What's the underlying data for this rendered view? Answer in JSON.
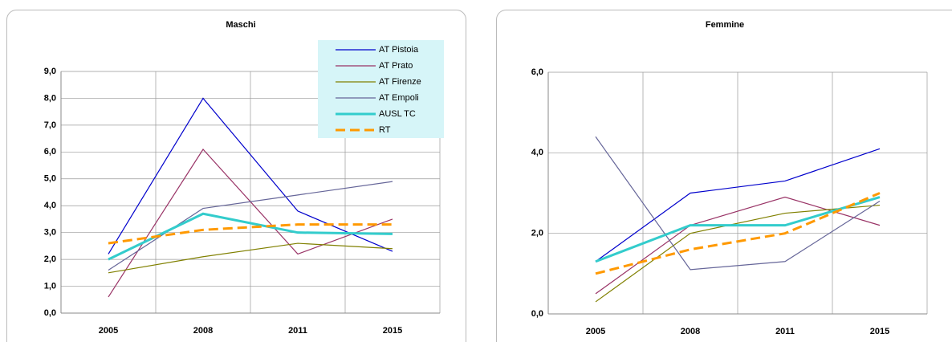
{
  "chart_data": [
    {
      "type": "line",
      "title": "Maschi",
      "categories": [
        "2005",
        "2008",
        "2011",
        "2015"
      ],
      "ylim": [
        0,
        9
      ],
      "yticks": [
        {
          "value": 0,
          "label": "0,0"
        },
        {
          "value": 1,
          "label": "1,0"
        },
        {
          "value": 2,
          "label": "2,0"
        },
        {
          "value": 3,
          "label": "3,0"
        },
        {
          "value": 4,
          "label": "4,0"
        },
        {
          "value": 5,
          "label": "5,0"
        },
        {
          "value": 6,
          "label": "6,0"
        },
        {
          "value": 7,
          "label": "7,0"
        },
        {
          "value": 8,
          "label": "8,0"
        },
        {
          "value": 9,
          "label": "9,0"
        }
      ],
      "grid": true,
      "legend": "top-right",
      "series": [
        {
          "name": "AT Pistoia",
          "color": "#0000cc",
          "values": [
            2.2,
            8.0,
            3.8,
            2.3
          ]
        },
        {
          "name": "AT Prato",
          "color": "#993366",
          "values": [
            0.6,
            6.1,
            2.2,
            3.5
          ]
        },
        {
          "name": "AT Firenze",
          "color": "#808000",
          "values": [
            1.5,
            2.1,
            2.6,
            2.4
          ]
        },
        {
          "name": "AT Empoli",
          "color": "#666699",
          "values": [
            1.6,
            3.9,
            4.4,
            4.9
          ]
        },
        {
          "name": "AUSL TC",
          "color": "#33cccc",
          "values": [
            2.0,
            3.7,
            3.0,
            2.95
          ]
        },
        {
          "name": "RT",
          "color": "#ff9900",
          "dashed": true,
          "values": [
            2.6,
            3.1,
            3.3,
            3.3
          ]
        }
      ]
    },
    {
      "type": "line",
      "title": "Femmine",
      "categories": [
        "2005",
        "2008",
        "2011",
        "2015"
      ],
      "ylim": [
        0,
        6
      ],
      "yticks": [
        {
          "value": 0,
          "label": "0,0"
        },
        {
          "value": 2,
          "label": "2,0"
        },
        {
          "value": 4,
          "label": "4,0"
        },
        {
          "value": 6,
          "label": "6,0"
        }
      ],
      "grid": true,
      "series": [
        {
          "color": "#0000cc",
          "values": [
            1.3,
            3.0,
            3.3,
            4.1
          ]
        },
        {
          "color": "#993366",
          "values": [
            0.5,
            2.2,
            2.9,
            2.2
          ]
        },
        {
          "color": "#808000",
          "values": [
            0.3,
            2.0,
            2.5,
            2.7
          ]
        },
        {
          "color": "#666699",
          "values": [
            4.4,
            1.1,
            1.3,
            2.8
          ]
        },
        {
          "color": "#33cccc",
          "values": [
            1.3,
            2.2,
            2.2,
            2.9
          ]
        },
        {
          "color": "#ff9900",
          "dashed": true,
          "values": [
            1.0,
            1.6,
            2.0,
            3.0
          ]
        }
      ]
    }
  ]
}
